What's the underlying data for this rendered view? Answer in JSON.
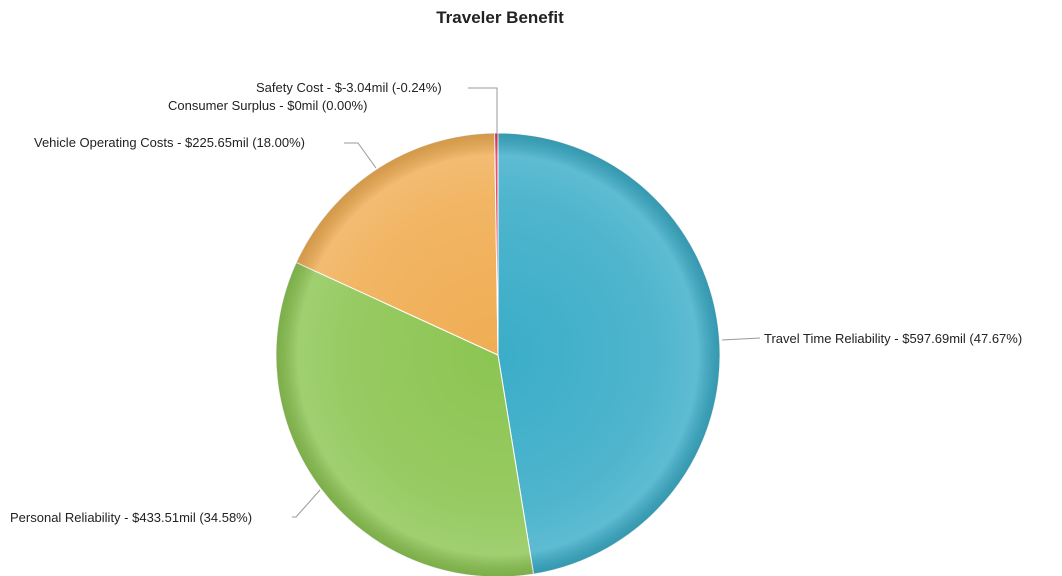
{
  "chart_data": {
    "type": "pie",
    "title": "Traveler Benefit",
    "slices": [
      {
        "name": "Travel Time Reliability",
        "value": 597.69,
        "percent": 47.67,
        "label": "Travel Time Reliability - $597.69mil (47.67%)",
        "color": "#3badc8"
      },
      {
        "name": "Personal Reliability",
        "value": 433.51,
        "percent": 34.58,
        "label": "Personal Reliability - $433.51mil (34.58%)",
        "color": "#8cc552"
      },
      {
        "name": "Vehicle Operating Costs",
        "value": 225.65,
        "percent": 18.0,
        "label": "Vehicle Operating Costs - $225.65mil (18.00%)",
        "color": "#f0ad53"
      },
      {
        "name": "Consumer Surplus",
        "value": 0,
        "percent": 0.0,
        "label": "Consumer Surplus - $0mil (0.00%)",
        "color": "#7a3fb0"
      },
      {
        "name": "Safety Cost",
        "value": -3.04,
        "percent": -0.24,
        "label": "Safety Cost - $-3.04mil (-0.24%)",
        "color": "#e0305a"
      }
    ]
  }
}
